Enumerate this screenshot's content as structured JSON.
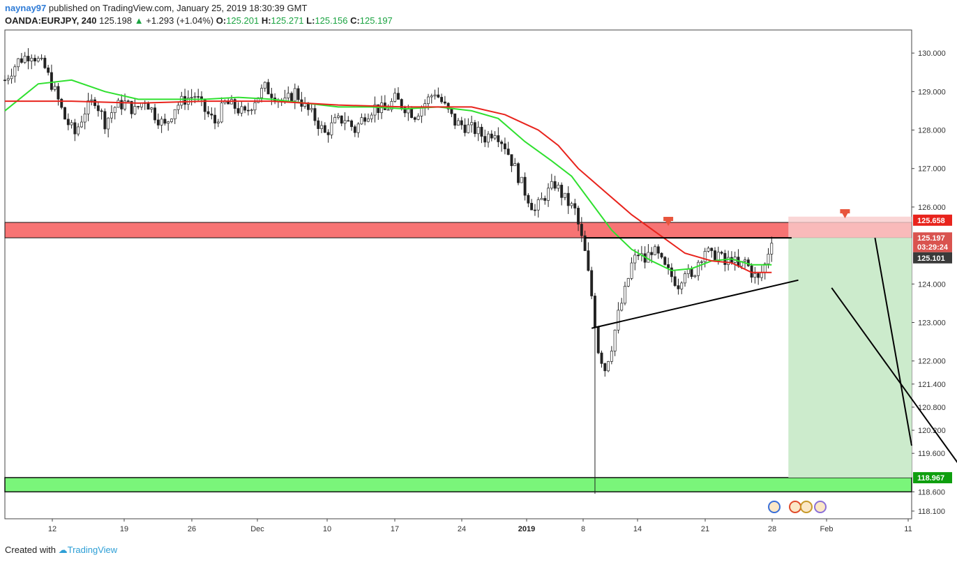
{
  "header": {
    "user": "naynay97",
    "published": "published on TradingView.com, January 25, 2019 18:30:39 GMT",
    "symbol": "OANDA:EURJPY, 240",
    "last": "125.198",
    "change": "+1.293 (+1.04%)",
    "o_label": "O:",
    "o": "125.201",
    "h_label": "H:",
    "h": "125.271",
    "l_label": "L:",
    "l": "125.156",
    "c_label": "C:",
    "c": "125.197"
  },
  "footer": {
    "created": "Created with",
    "brand": "TradingView"
  },
  "colors": {
    "up": "#2a2a2a",
    "down": "#2a2a2a",
    "ma_fast": "#2fe02f",
    "ma_slow": "#e8231c",
    "resistance_zone": "#f77474",
    "support_zone": "#7af57a",
    "target_zone": "#ccebcc",
    "stop_zone": "#f9cccc"
  },
  "chart_data": {
    "type": "candlestick",
    "title": "",
    "y_ticks": [
      "130.000",
      "129.000",
      "128.000",
      "127.000",
      "126.000",
      "125.101",
      "124.000",
      "123.000",
      "122.000",
      "121.400",
      "120.800",
      "120.200",
      "119.600",
      "118.600",
      "118.100"
    ],
    "x_ticks": [
      "12",
      "19",
      "26",
      "Dec",
      "10",
      "17",
      "24",
      "2019",
      "8",
      "14",
      "21",
      "28",
      "Feb",
      "11"
    ],
    "price_labels": [
      {
        "value": "125.658",
        "color": "#e8231c"
      },
      {
        "value": "125.197",
        "color": "#d9534f"
      },
      {
        "value": "03:29:24",
        "color": "#d9534f"
      },
      {
        "value": "125.101",
        "color": "#3a3a3a"
      },
      {
        "value": "118.967",
        "color": "#0e9e0e"
      }
    ],
    "close_path": [
      [
        0,
        129.3
      ],
      [
        4,
        129.8
      ],
      [
        8,
        130.0
      ],
      [
        12,
        129.6
      ],
      [
        15,
        129.0
      ],
      [
        18,
        128.3
      ],
      [
        21,
        127.9
      ],
      [
        24,
        128.5
      ],
      [
        27,
        128.8
      ],
      [
        30,
        128.2
      ],
      [
        33,
        128.6
      ],
      [
        36,
        128.7
      ],
      [
        39,
        128.5
      ],
      [
        42,
        128.8
      ],
      [
        45,
        128.4
      ],
      [
        48,
        128.1
      ],
      [
        51,
        128.6
      ],
      [
        54,
        128.8
      ],
      [
        57,
        128.9
      ],
      [
        60,
        128.5
      ],
      [
        63,
        128.2
      ],
      [
        66,
        128.7
      ],
      [
        69,
        128.6
      ],
      [
        72,
        128.4
      ],
      [
        75,
        128.8
      ],
      [
        78,
        129.1
      ],
      [
        81,
        128.9
      ],
      [
        84,
        128.7
      ],
      [
        87,
        129.0
      ],
      [
        90,
        128.6
      ],
      [
        93,
        128.3
      ],
      [
        96,
        127.9
      ],
      [
        99,
        128.2
      ],
      [
        102,
        128.3
      ],
      [
        105,
        128.0
      ],
      [
        108,
        128.4
      ],
      [
        111,
        128.6
      ],
      [
        114,
        128.5
      ],
      [
        117,
        128.8
      ],
      [
        120,
        128.6
      ],
      [
        123,
        128.4
      ],
      [
        126,
        128.7
      ],
      [
        129,
        129.0
      ],
      [
        132,
        128.6
      ],
      [
        135,
        128.2
      ],
      [
        138,
        128.1
      ],
      [
        141,
        128.0
      ],
      [
        144,
        127.8
      ],
      [
        147,
        128.0
      ],
      [
        150,
        127.6
      ],
      [
        153,
        127.0
      ],
      [
        156,
        126.4
      ],
      [
        159,
        125.9
      ],
      [
        162,
        126.3
      ],
      [
        165,
        126.6
      ],
      [
        168,
        126.2
      ],
      [
        171,
        125.9
      ],
      [
        174,
        124.8
      ],
      [
        176,
        123.7
      ],
      [
        178,
        122.3
      ],
      [
        180,
        121.8
      ],
      [
        182,
        122.4
      ],
      [
        184,
        123.2
      ],
      [
        186,
        123.8
      ],
      [
        188,
        124.5
      ],
      [
        190,
        124.8
      ],
      [
        192,
        124.6
      ],
      [
        194,
        124.9
      ],
      [
        196,
        124.7
      ],
      [
        198,
        124.4
      ],
      [
        200,
        124.2
      ],
      [
        202,
        124.0
      ],
      [
        204,
        124.4
      ],
      [
        206,
        124.1
      ],
      [
        208,
        124.6
      ],
      [
        210,
        124.9
      ],
      [
        212,
        124.7
      ],
      [
        214,
        124.8
      ],
      [
        216,
        124.5
      ],
      [
        218,
        124.7
      ],
      [
        220,
        124.4
      ],
      [
        222,
        124.6
      ],
      [
        224,
        124.3
      ],
      [
        226,
        124.1
      ],
      [
        228,
        124.5
      ],
      [
        230,
        125.2
      ]
    ],
    "ma_fast_path": [
      [
        0,
        128.5
      ],
      [
        10,
        129.2
      ],
      [
        20,
        129.3
      ],
      [
        30,
        129.0
      ],
      [
        40,
        128.8
      ],
      [
        50,
        128.8
      ],
      [
        60,
        128.8
      ],
      [
        70,
        128.85
      ],
      [
        80,
        128.8
      ],
      [
        90,
        128.7
      ],
      [
        100,
        128.6
      ],
      [
        110,
        128.6
      ],
      [
        120,
        128.55
      ],
      [
        130,
        128.6
      ],
      [
        140,
        128.5
      ],
      [
        148,
        128.3
      ],
      [
        156,
        127.7
      ],
      [
        164,
        127.2
      ],
      [
        170,
        126.8
      ],
      [
        176,
        126.1
      ],
      [
        182,
        125.4
      ],
      [
        188,
        124.9
      ],
      [
        194,
        124.6
      ],
      [
        200,
        124.35
      ],
      [
        206,
        124.4
      ],
      [
        212,
        124.6
      ],
      [
        218,
        124.65
      ],
      [
        224,
        124.5
      ],
      [
        230,
        124.5
      ]
    ],
    "ma_slow_path": [
      [
        0,
        128.75
      ],
      [
        20,
        128.75
      ],
      [
        40,
        128.7
      ],
      [
        60,
        128.75
      ],
      [
        80,
        128.75
      ],
      [
        100,
        128.65
      ],
      [
        120,
        128.6
      ],
      [
        140,
        128.6
      ],
      [
        150,
        128.4
      ],
      [
        160,
        128.0
      ],
      [
        166,
        127.6
      ],
      [
        172,
        127.0
      ],
      [
        180,
        126.4
      ],
      [
        188,
        125.8
      ],
      [
        196,
        125.3
      ],
      [
        204,
        124.8
      ],
      [
        212,
        124.6
      ],
      [
        218,
        124.55
      ],
      [
        224,
        124.3
      ],
      [
        230,
        124.3
      ]
    ],
    "resistance_zone": [
      125.2,
      125.6
    ],
    "support_zone": [
      118.6,
      118.97
    ],
    "trendline": [
      [
        176,
        122.85
      ],
      [
        238,
        124.1
      ]
    ],
    "x_range": [
      0,
      272
    ],
    "y_range": [
      117.9,
      130.6
    ]
  }
}
